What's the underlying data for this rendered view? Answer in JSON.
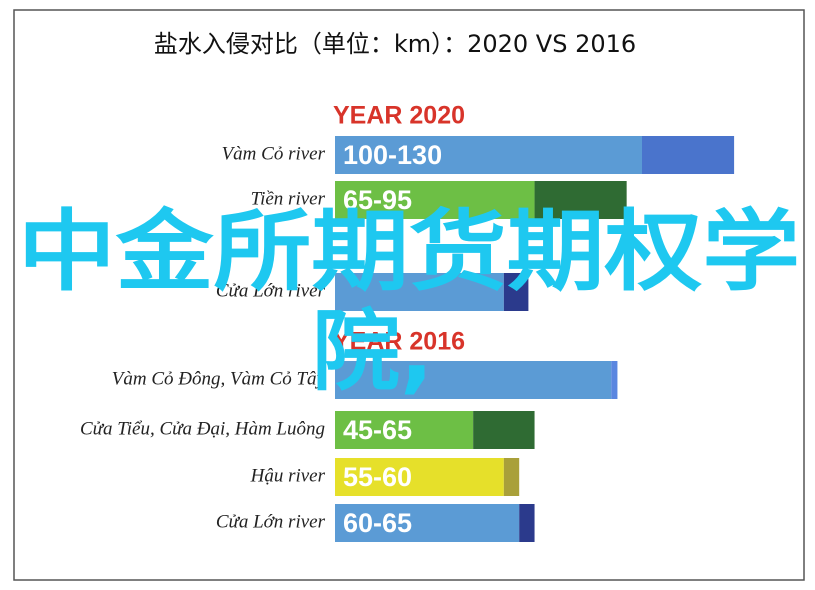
{
  "chart_data": {
    "type": "range-bar",
    "title": "盐水入侵对比（单位：km）：2020 VS 2016",
    "groups": [
      {
        "title": "YEAR 2020",
        "rows": [
          {
            "category": "Vàm Cỏ river",
            "min": 100,
            "max": 130,
            "value_label": "100-130",
            "color": "#5b9bd5",
            "end_color": "#4a74cc"
          },
          {
            "category": "Tiền river",
            "min": 65,
            "max": 95,
            "value_label": "65-95",
            "color": "#6dbf45",
            "end_color": "#2f6b33"
          },
          {
            "category": "Cửa Lớn river",
            "min": 55,
            "max": 63,
            "value_label": null,
            "color": "#5b9bd5",
            "end_color": "#2b3a8c"
          }
        ]
      },
      {
        "title": "YEAR 2016",
        "rows": [
          {
            "category": "Vàm Cỏ Đông, Vàm Cỏ Tây",
            "min": 90,
            "max": 92,
            "value_label": null,
            "color": "#5b9bd5",
            "end_color": "#5a86e0"
          },
          {
            "category": "Cửa Tiểu, Cửa Đại, Hàm Luông",
            "min": 45,
            "max": 65,
            "value_label": "45-65",
            "color": "#6dbf45",
            "end_color": "#2f6b33"
          },
          {
            "category": "Hậu river",
            "min": 55,
            "max": 60,
            "value_label": "55-60",
            "color": "#e6e02a",
            "end_color": "#a9a03a"
          },
          {
            "category": "Cửa Lớn river",
            "min": 60,
            "max": 65,
            "value_label": "60-65",
            "color": "#5b9bd5",
            "end_color": "#2b3a8c"
          }
        ]
      }
    ],
    "watermark": [
      "中金所期货期权学",
      "院,"
    ]
  }
}
